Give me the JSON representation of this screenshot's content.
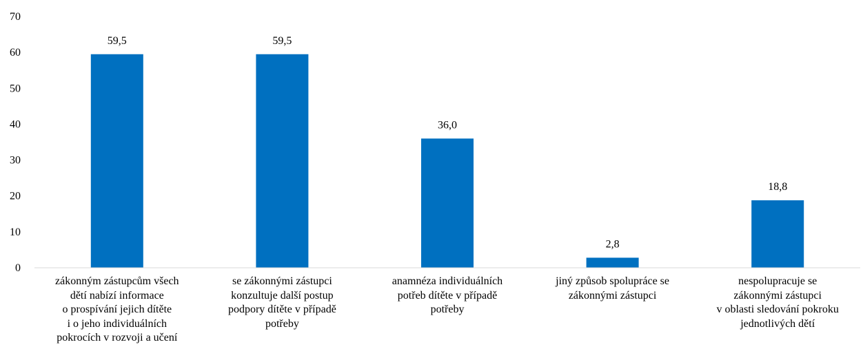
{
  "chart_data": {
    "type": "bar",
    "title": "",
    "xlabel": "",
    "ylabel": "",
    "ylim": [
      0,
      70
    ],
    "yticks": [
      0,
      10,
      20,
      30,
      40,
      50,
      60,
      70
    ],
    "grid": false,
    "legend": "none",
    "bar_color": "#0070C0",
    "categories": [
      "zákonným zástupcům všech\ndětí nabízí informace\no prospívání jejich dítěte\ni o jeho individuálních\npokrocích v rozvoji a učení",
      "se zákonnými zástupci\nkonzultuje další postup\npodpory dítěte v případě\npotřeby",
      "anamnéza individuálních\npotřeb dítěte v případě\npotřeby",
      "jiný způsob spolupráce se\nzákonnými zástupci",
      "nespolupracuje se\nzákonnými zástupci\nv oblasti sledování pokroku\njednotlivých dětí"
    ],
    "values": [
      59.5,
      59.5,
      36.0,
      2.8,
      18.8
    ],
    "value_labels": [
      "59,5",
      "59,5",
      "36,0",
      "2,8",
      "18,8"
    ]
  }
}
